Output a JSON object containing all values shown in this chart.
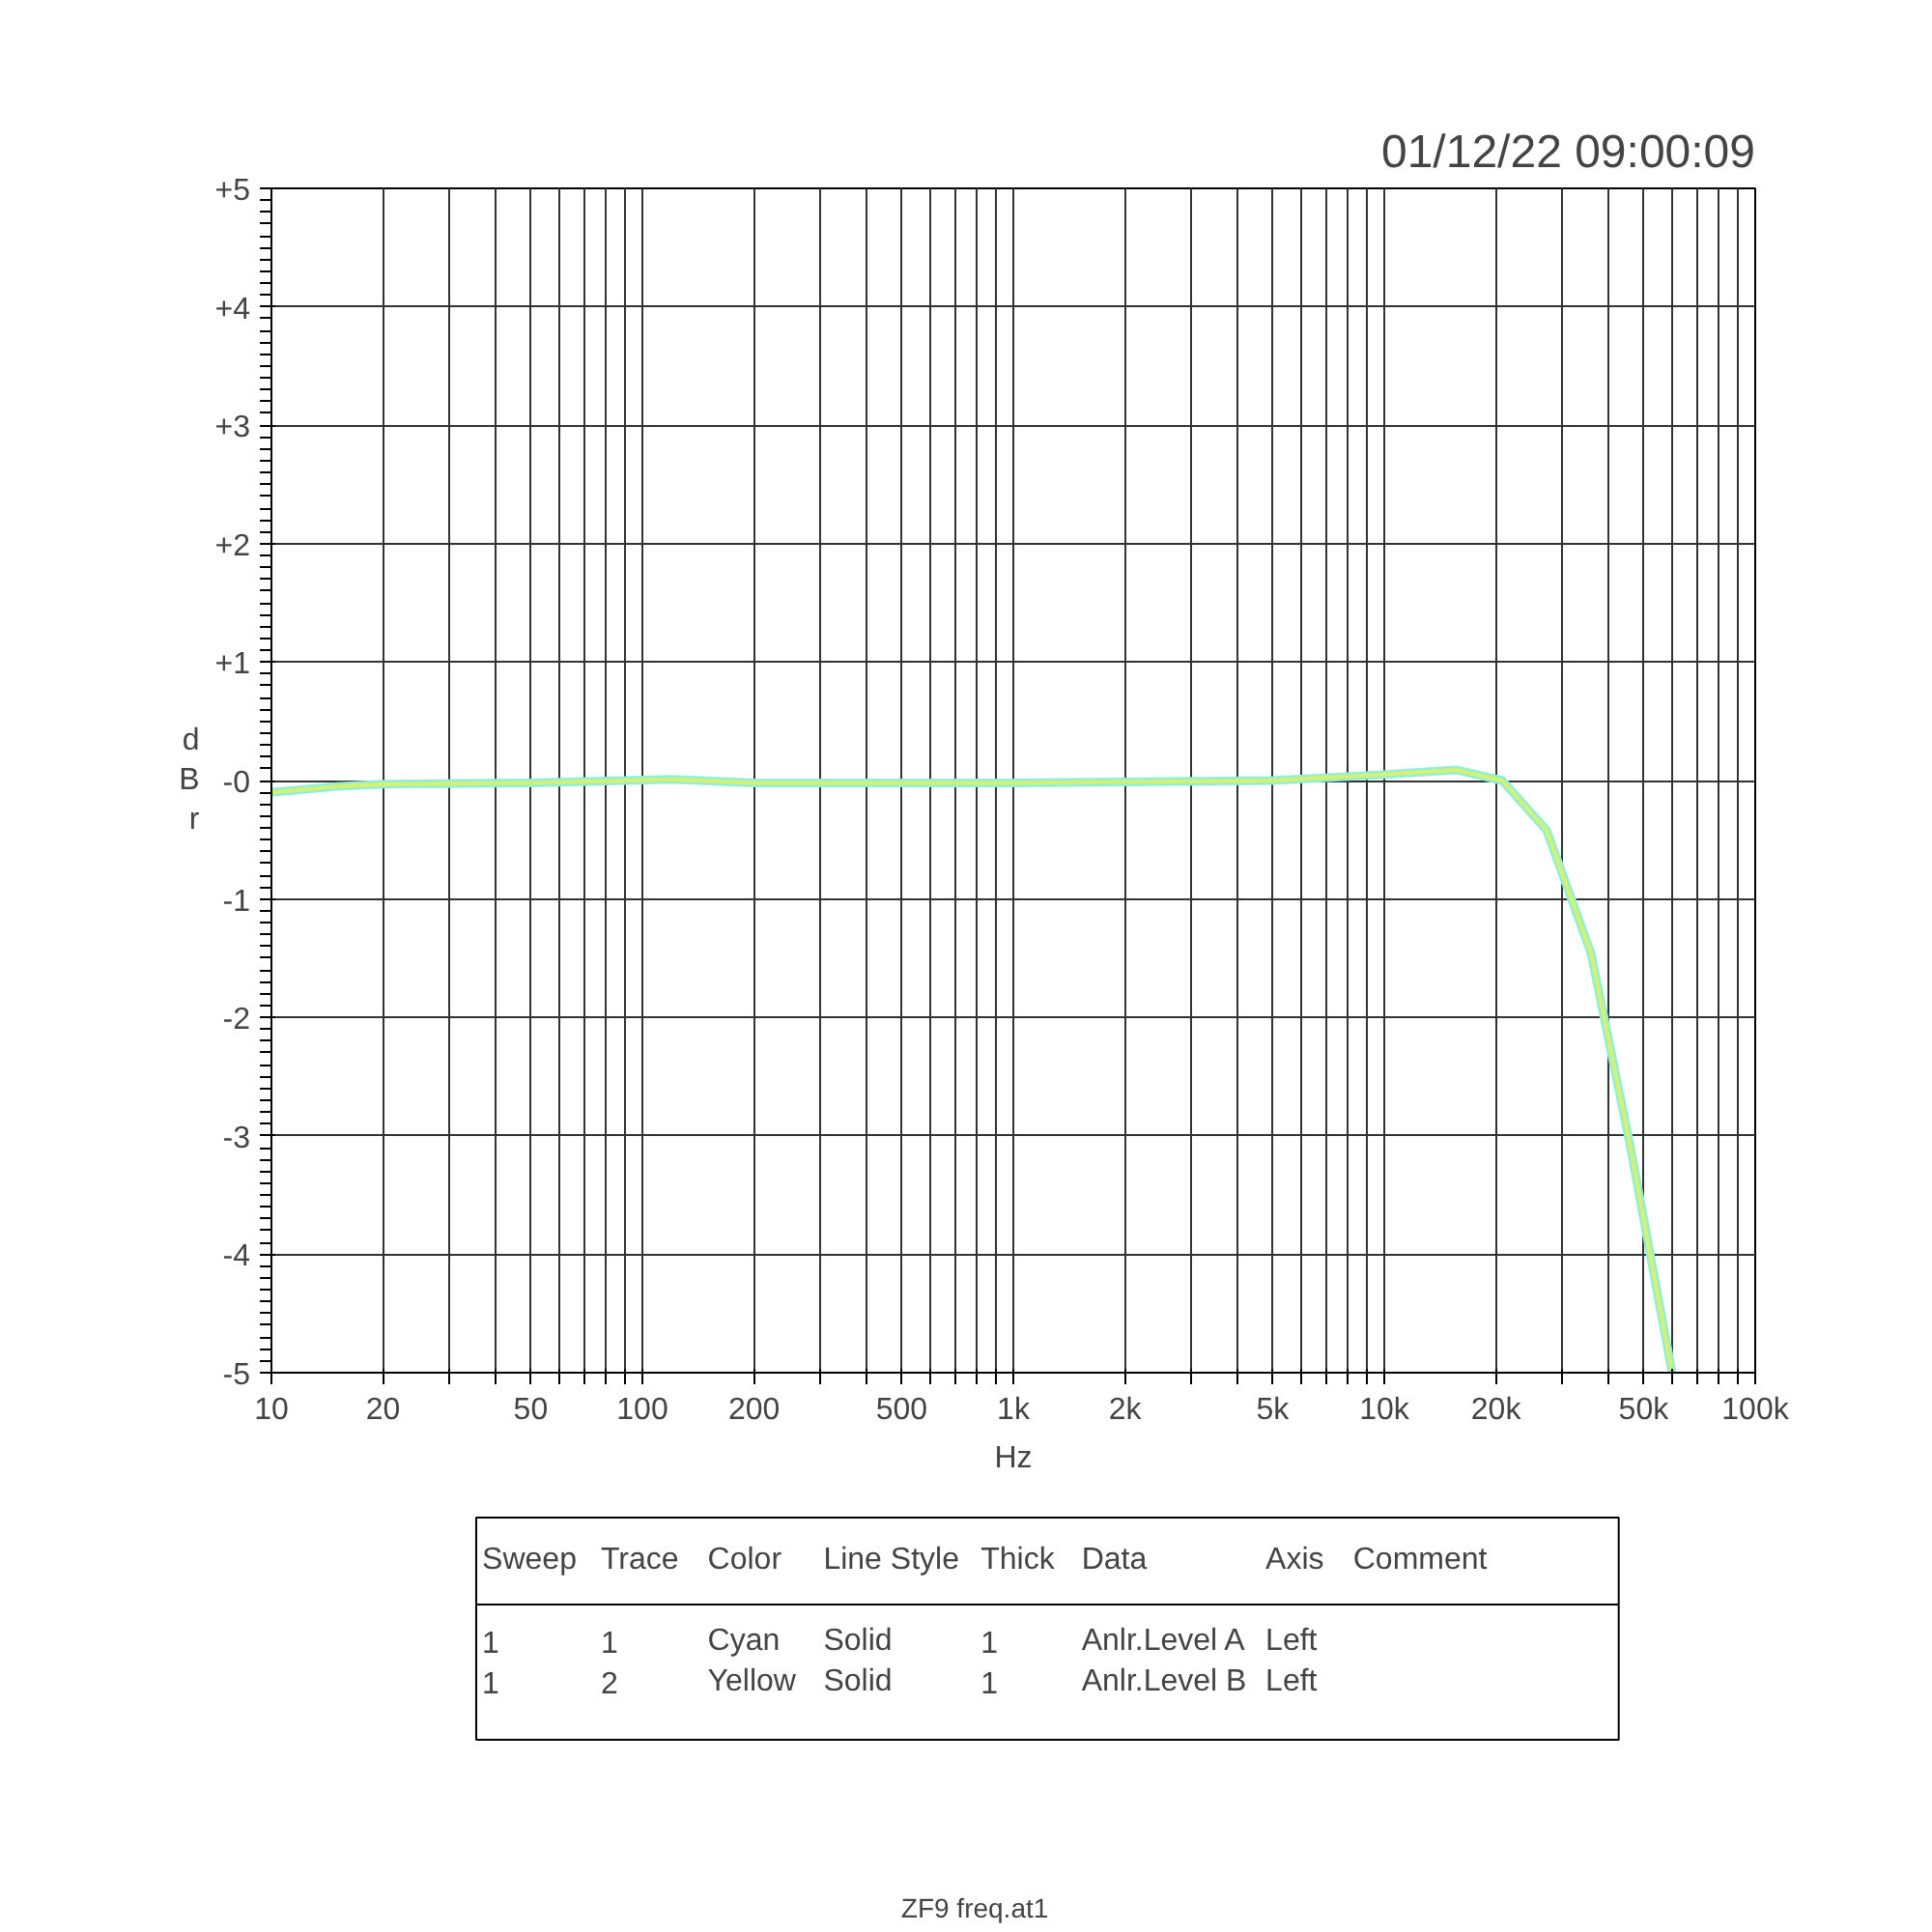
{
  "chart_data": {
    "type": "line",
    "xlabel": "Hz",
    "ylabel": "dBr",
    "log": "x",
    "grid": true,
    "xlim": [
      10,
      100000
    ],
    "ylim": [
      -5,
      5
    ],
    "xticks": [
      10,
      20,
      {
        "value": 30,
        "label": null
      },
      {
        "value": 40,
        "label": null
      },
      50,
      {
        "value": 60,
        "label": null
      },
      {
        "value": 70,
        "label": null
      },
      {
        "value": 80,
        "label": null
      },
      {
        "value": 90,
        "label": null
      },
      100,
      200,
      {
        "value": 300,
        "label": null
      },
      {
        "value": 400,
        "label": null
      },
      500,
      {
        "value": 600,
        "label": null
      },
      {
        "value": 700,
        "label": null
      },
      {
        "value": 800,
        "label": null
      },
      {
        "value": 900,
        "label": null
      },
      {
        "value": 1000,
        "label": "1k"
      },
      {
        "value": 2000,
        "label": "2k"
      },
      {
        "value": 3000,
        "label": null
      },
      {
        "value": 4000,
        "label": null
      },
      {
        "value": 5000,
        "label": "5k"
      },
      {
        "value": 6000,
        "label": null
      },
      {
        "value": 7000,
        "label": null
      },
      {
        "value": 8000,
        "label": null
      },
      {
        "value": 9000,
        "label": null
      },
      {
        "value": 10000,
        "label": "10k"
      },
      {
        "value": 20000,
        "label": "20k"
      },
      {
        "value": 30000,
        "label": null
      },
      {
        "value": 40000,
        "label": null
      },
      {
        "value": 50000,
        "label": "50k"
      },
      {
        "value": 60000,
        "label": null
      },
      {
        "value": 70000,
        "label": null
      },
      {
        "value": 80000,
        "label": null
      },
      {
        "value": 90000,
        "label": null
      },
      {
        "value": 100000,
        "label": "100k"
      }
    ],
    "yticks": [
      {
        "value": 5,
        "label": "+5"
      },
      {
        "value": 4,
        "label": "+4"
      },
      {
        "value": 3,
        "label": "+3"
      },
      {
        "value": 2,
        "label": "+2"
      },
      {
        "value": 1,
        "label": "+1"
      },
      {
        "value": 0,
        "label": "-0"
      },
      -1,
      -2,
      -3,
      -4,
      -5
    ],
    "line_style": "solid",
    "x": [
      10,
      15,
      20,
      50,
      120,
      200,
      1000,
      5000,
      10000,
      15600,
      20800,
      27400,
      36100,
      45800,
      59700
    ],
    "series": [
      {
        "color": "#8ff0d8",
        "values": [
          -0.1,
          -0.05,
          -0.03,
          -0.02,
          0.01,
          -0.02,
          -0.02,
          0.0,
          0.05,
          0.09,
          0.0,
          -0.42,
          -1.46,
          -3.05,
          -5.0
        ]
      },
      {
        "color": "#d8f070",
        "values": [
          -0.1,
          -0.05,
          -0.03,
          -0.02,
          0.01,
          -0.02,
          -0.02,
          0.0,
          0.05,
          0.09,
          0.0,
          -0.42,
          -1.46,
          -3.05,
          -5.0
        ]
      }
    ],
    "annotations": [
      "01/12/22 09:00:09",
      "Sweep",
      "Trace",
      "Color",
      "Line Style",
      "Thick",
      "Data",
      "Axis",
      "Comment",
      "1",
      "1",
      "Cyan",
      "Solid",
      "1",
      "Anlr.Level A",
      "Left",
      null,
      "1",
      "2",
      "Yellow",
      "Solid",
      "1",
      "Anlr.Level B",
      "Left",
      null,
      "ZF9 freq.at1"
    ]
  }
}
